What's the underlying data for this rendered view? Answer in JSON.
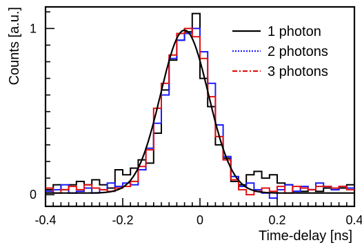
{
  "chart_data": {
    "type": "line",
    "title": "",
    "xlabel": "Time-delay [ns]",
    "ylabel": "Counts [a.u.]",
    "xlim": [
      -0.4,
      0.4
    ],
    "ylim": [
      -0.07,
      1.13
    ],
    "x_ticks": [
      -0.4,
      -0.2,
      0,
      0.2,
      0.4
    ],
    "x_tick_labels": [
      "-0.4",
      "-0.2",
      "0",
      "0.2",
      "0.4"
    ],
    "y_ticks": [
      0,
      1
    ],
    "y_tick_labels": [
      "0",
      "1"
    ],
    "legend_position": "top-right",
    "bin_edges": [
      -0.4,
      -0.38,
      -0.36,
      -0.34,
      -0.32,
      -0.3,
      -0.28,
      -0.26,
      -0.24,
      -0.22,
      -0.2,
      -0.18,
      -0.16,
      -0.14,
      -0.12,
      -0.1,
      -0.08,
      -0.06,
      -0.04,
      -0.02,
      0,
      0.02,
      0.04,
      0.06,
      0.08,
      0.1,
      0.12,
      0.14,
      0.16,
      0.18,
      0.2,
      0.22,
      0.24,
      0.26,
      0.28,
      0.3,
      0.32,
      0.34,
      0.36,
      0.38,
      0.4
    ],
    "series": [
      {
        "name": "1 photon",
        "color": "#000000",
        "style": "solid",
        "values": [
          0.03,
          0.06,
          0.03,
          0.06,
          0.08,
          0.06,
          0.09,
          0.06,
          0.04,
          0.15,
          0.12,
          0.16,
          0.21,
          0.19,
          0.37,
          0.63,
          0.81,
          0.93,
          0.98,
          1.09,
          0.7,
          0.53,
          0.3,
          0.22,
          0.08,
          0.06,
          0.12,
          0.14,
          0.1,
          0.12,
          0.07,
          0.06,
          0.02,
          0.02,
          0.03,
          0.02,
          0.04,
          0.03,
          0.04,
          0.06
        ],
        "fit_curve": {
          "mean": -0.04,
          "sigma": 0.062,
          "amplitude": 0.98,
          "baseline": 0.01
        }
      },
      {
        "name": "2 photons",
        "color": "#1a1aff",
        "style": "dotted",
        "values": [
          0.02,
          0.03,
          0.06,
          0.01,
          0.02,
          0.04,
          0.01,
          0.03,
          0.07,
          0.05,
          0.07,
          0.06,
          0.15,
          0.28,
          0.43,
          0.6,
          0.82,
          0.93,
          0.97,
          1.0,
          0.86,
          0.67,
          0.42,
          0.23,
          0.11,
          0.05,
          0.07,
          0.03,
          0.01,
          -0.02,
          0.03,
          0.06,
          0.02,
          0.05,
          0.03,
          0.07,
          0.05,
          0.03,
          0.05,
          0.04
        ]
      },
      {
        "name": "3 photons",
        "color": "#e01010",
        "style": "dashdot",
        "values": [
          0.04,
          0.01,
          0.03,
          0.05,
          0.03,
          0.06,
          0.04,
          0.03,
          0.02,
          0.04,
          0.05,
          0.08,
          0.17,
          0.27,
          0.52,
          0.67,
          0.84,
          0.97,
          1.0,
          0.95,
          0.82,
          0.59,
          0.35,
          0.21,
          0.09,
          0.03,
          0.0,
          0.02,
          0.04,
          0.02,
          0.05,
          0.01,
          0.05,
          0.04,
          0.03,
          0.05,
          0.05,
          0.04,
          0.05,
          0.03
        ]
      }
    ]
  }
}
